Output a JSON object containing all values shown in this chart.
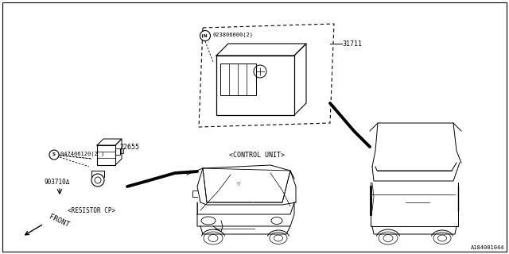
{
  "bg_color": "#ffffff",
  "border_color": "#000000",
  "parts": {
    "s_label": "S047406120(2 )",
    "resistor_num": "22655",
    "bolt_num": "903710Δ",
    "resistor_cap": "<RESISTOR CP>",
    "n_label": "N023806000(2)",
    "control_num": "31711",
    "control_cap": "<CONTROL UNIT>"
  },
  "front_label": "FRONT",
  "diagram_id": "A184001044",
  "fig_width": 6.4,
  "fig_height": 3.2
}
